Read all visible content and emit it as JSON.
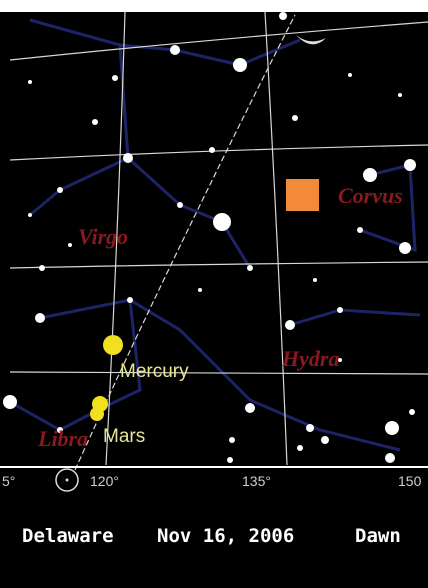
{
  "map": {
    "constellations": [
      "Corvus",
      "Virgo",
      "Hydra",
      "Libra"
    ],
    "planets": [
      "Mercury",
      "Mars"
    ],
    "ra_labels": [
      "5°",
      "120°",
      "135°",
      "150"
    ],
    "caption": {
      "location": "Delaware",
      "date": "Nov 16, 2006",
      "time": "Dawn"
    }
  }
}
